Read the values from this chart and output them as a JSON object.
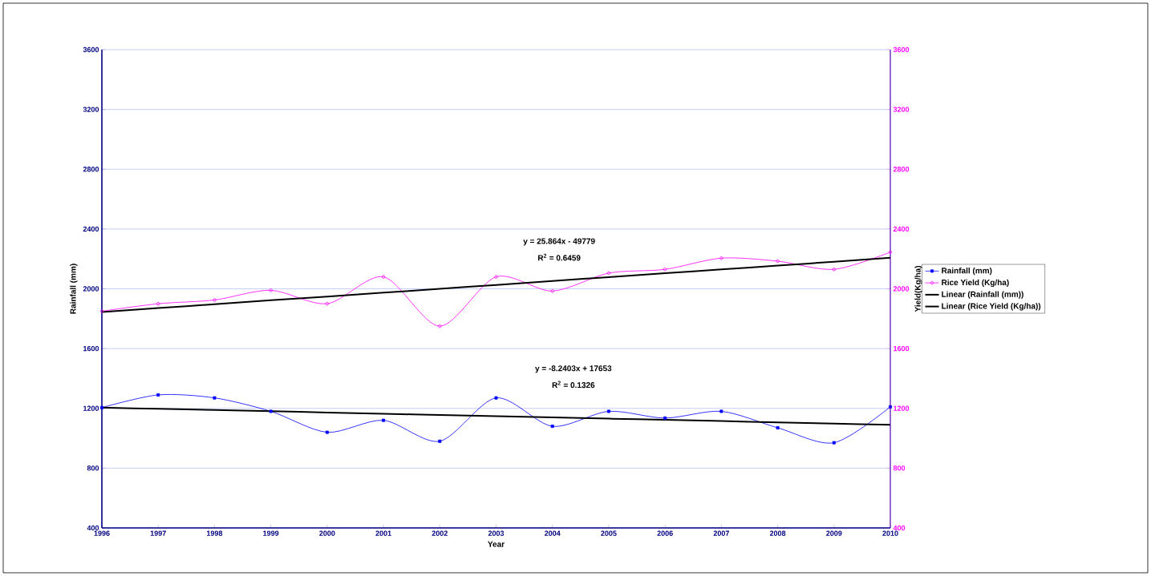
{
  "chart_data": {
    "type": "line",
    "xlabel": "Year",
    "ylabel": "Rainfall (mm)",
    "y2label": "Yield(Kg/ha)",
    "x": [
      1996,
      1997,
      1998,
      1999,
      2000,
      2001,
      2002,
      2003,
      2004,
      2005,
      2006,
      2007,
      2008,
      2009,
      2010
    ],
    "xlim": [
      1996,
      2010
    ],
    "xticks": [
      1996,
      1997,
      1998,
      1999,
      2000,
      2001,
      2002,
      2003,
      2004,
      2005,
      2006,
      2007,
      2008,
      2009,
      2010
    ],
    "ylim": [
      400,
      3600
    ],
    "yticks": [
      400,
      800,
      1200,
      1600,
      2000,
      2400,
      2800,
      3200,
      3600
    ],
    "y2lim": [
      400,
      3600
    ],
    "y2ticks": [
      400,
      800,
      1200,
      1600,
      2000,
      2400,
      2800,
      3200,
      3600
    ],
    "grid": "y",
    "legend": "right",
    "series": [
      {
        "name": "Rainfall (mm)",
        "color": "#0000ff",
        "marker": "square",
        "values": [
          1205,
          1290,
          1270,
          1180,
          1040,
          1120,
          980,
          1270,
          1080,
          1180,
          1135,
          1180,
          1070,
          970,
          1210
        ]
      },
      {
        "name": "Rice Yield (Kg/ha)",
        "color": "#ff00ff",
        "marker": "circle",
        "axis": "y2",
        "values": [
          1850,
          1900,
          1925,
          1990,
          1900,
          2080,
          1750,
          2080,
          1985,
          2105,
          2130,
          2205,
          2185,
          2130,
          2245
        ]
      },
      {
        "name": "Linear (Rainfall (mm))",
        "type": "line",
        "color": "#000000",
        "marker": "none",
        "values": [
          1205,
          1197,
          1189,
          1181,
          1172,
          1164,
          1156,
          1148,
          1139,
          1131,
          1123,
          1115,
          1106,
          1098,
          1090
        ]
      },
      {
        "name": "Linear (Rice Yield (Kg/ha))",
        "type": "line",
        "color": "#000000",
        "marker": "none",
        "axis": "y2",
        "values": [
          1845,
          1871,
          1897,
          1923,
          1948,
          1974,
          2000,
          2026,
          2052,
          2078,
          2104,
          2130,
          2155,
          2181,
          2207
        ]
      }
    ],
    "annotations": [
      "y = 25.864x - 49779",
      "R$^{2}$ = 0.6459",
      "y = -8.2403x + 17653",
      "R$^{2}$ = 0.1326"
    ]
  }
}
